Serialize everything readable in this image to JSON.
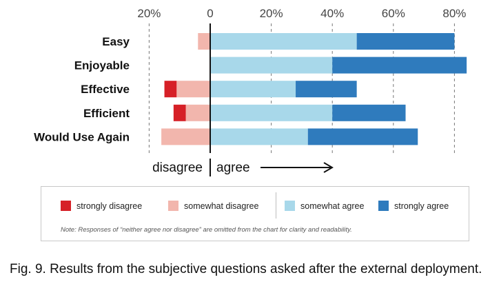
{
  "chart_data": {
    "type": "bar",
    "stacked": "diverging",
    "orientation": "horizontal",
    "categories": [
      "Easy",
      "Enjoyable",
      "Effective",
      "Efficient",
      "Would Use Again"
    ],
    "series": [
      {
        "name": "strongly disagree",
        "side": "disagree",
        "color": "#d62027",
        "values": [
          0,
          0,
          4,
          4,
          0
        ]
      },
      {
        "name": "somewhat disagree",
        "side": "disagree",
        "color": "#f2b6ad",
        "values": [
          4,
          0,
          11,
          8,
          16
        ]
      },
      {
        "name": "somewhat agree",
        "side": "agree",
        "color": "#a8d8ea",
        "values": [
          48,
          40,
          28,
          40,
          32
        ]
      },
      {
        "name": "strongly agree",
        "side": "agree",
        "color": "#2f7bbd",
        "values": [
          32,
          44,
          20,
          24,
          36
        ]
      }
    ],
    "xlim": [
      -20,
      85
    ],
    "x_ticks": [
      -20,
      0,
      20,
      40,
      60,
      80
    ],
    "x_tick_labels": [
      "20%",
      "0",
      "20%",
      "40%",
      "60%",
      "80%"
    ],
    "grid": "dashed vertical",
    "disagree_label": "disagree",
    "agree_label": "agree"
  },
  "legend": {
    "note": "Note: Responses of “neither agree nor disagree” are omitted from the chart for clarity and readability."
  },
  "caption": "Fig. 9.   Results from the subjective questions asked after the external deployment."
}
